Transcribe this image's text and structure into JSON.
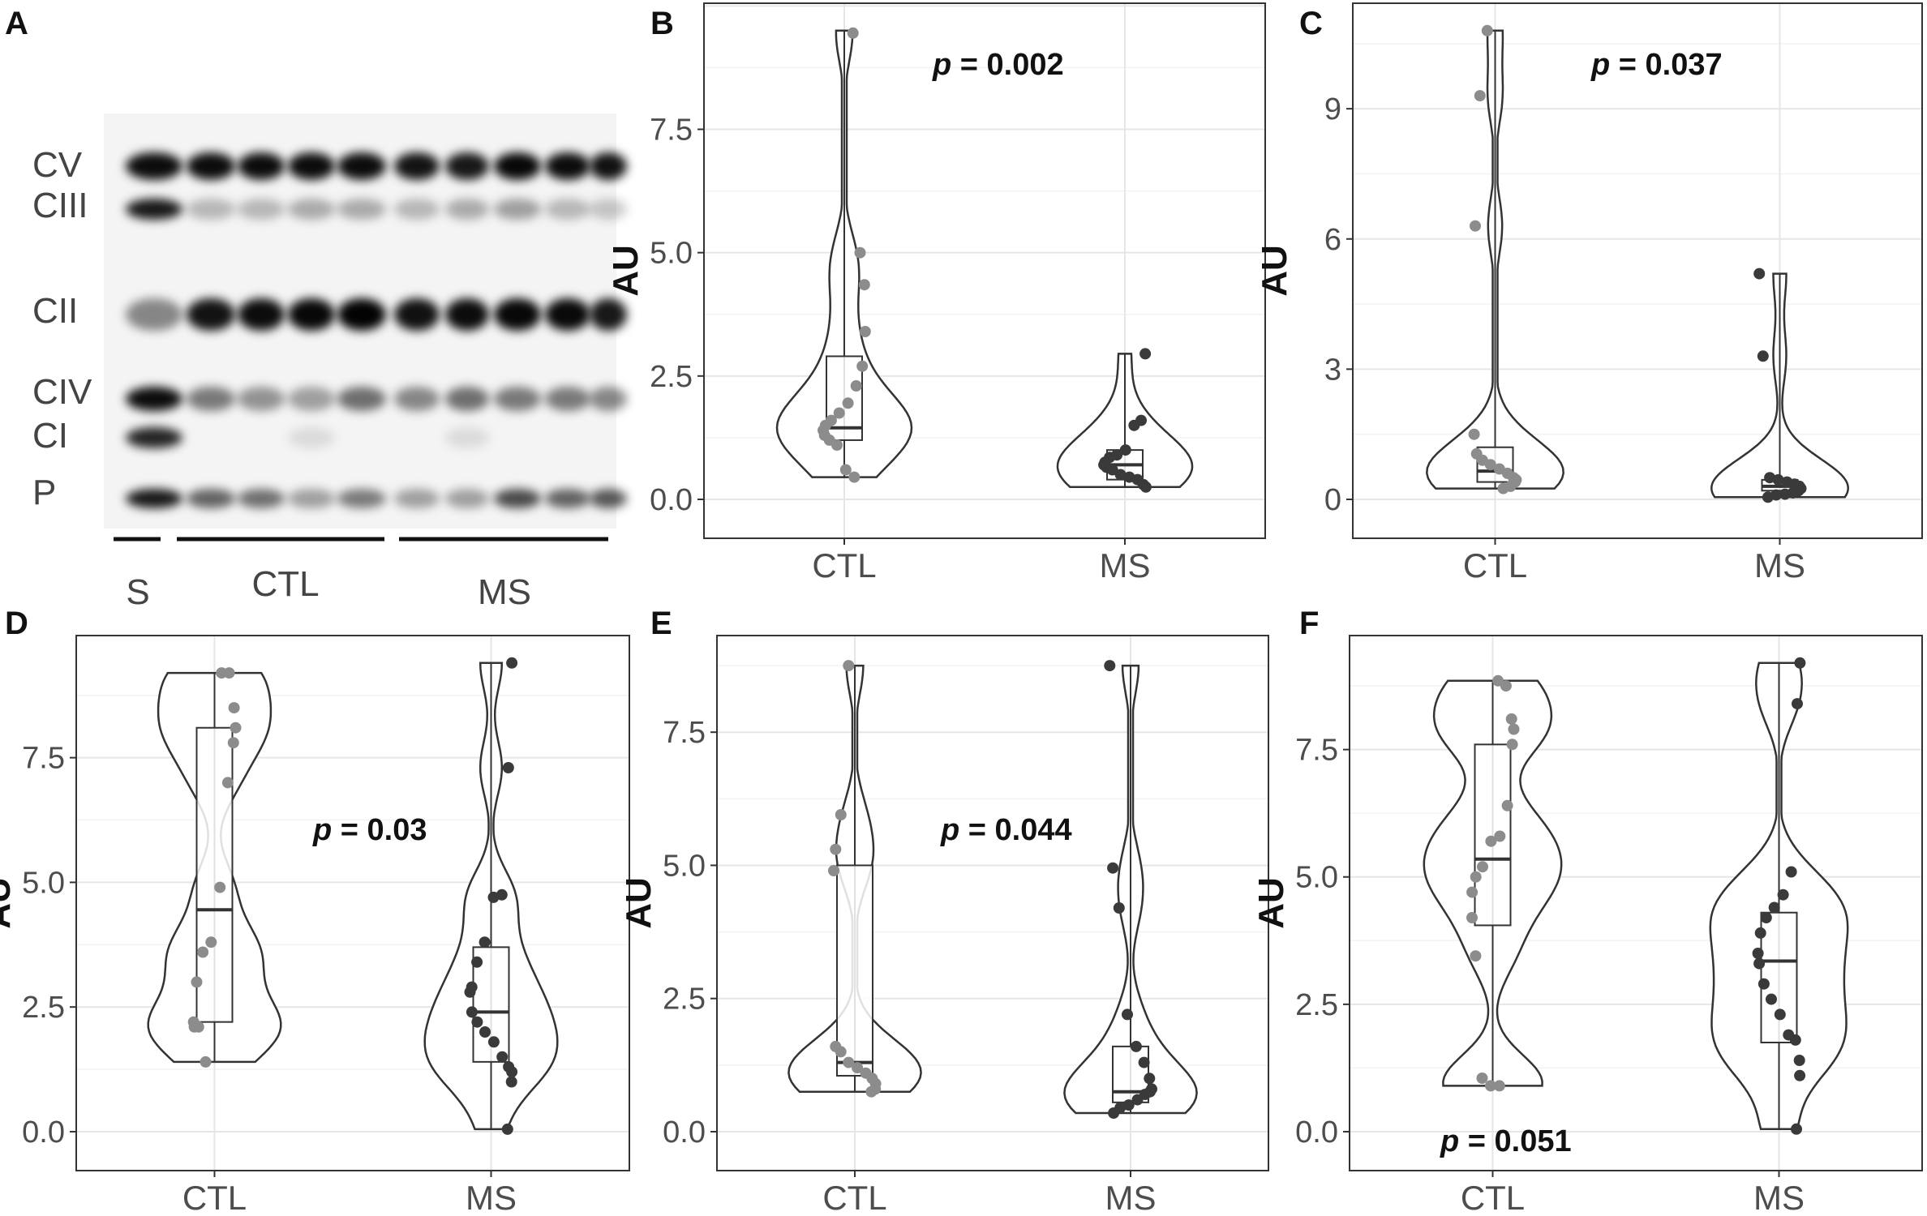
{
  "panel_letters": [
    "A",
    "B",
    "C",
    "D",
    "E",
    "F"
  ],
  "blot": {
    "band_labels": [
      "CV",
      "CIII",
      "CII",
      "CIV",
      "CI",
      "P"
    ],
    "group_labels": [
      "S",
      "CTL",
      "MS"
    ]
  },
  "chart_data": [
    {
      "panel": "B",
      "type": "violin",
      "ylabel": "AU",
      "ylim": [
        0,
        9.5
      ],
      "yticks": [
        0.0,
        2.5,
        5.0,
        7.5
      ],
      "ytick_labels": [
        "0.0",
        "2.5",
        "5.0",
        "7.5"
      ],
      "categories": [
        "CTL",
        "MS"
      ],
      "annotation": {
        "p": "p",
        "text": " = 0.002"
      },
      "grid": true,
      "groups": [
        {
          "name": "CTL",
          "min": 0.45,
          "max": 9.5,
          "q1": 1.2,
          "median": 1.45,
          "q3": 2.9,
          "points": [
            9.45,
            5.0,
            4.35,
            3.4,
            2.7,
            2.3,
            1.95,
            1.75,
            1.6,
            1.5,
            1.4,
            1.3,
            1.2,
            1.1,
            0.6,
            0.45
          ]
        },
        {
          "name": "MS",
          "min": 0.25,
          "max": 2.95,
          "q1": 0.4,
          "median": 0.7,
          "q3": 1.0,
          "points": [
            2.95,
            1.6,
            1.5,
            1.0,
            0.9,
            0.85,
            0.75,
            0.7,
            0.65,
            0.6,
            0.5,
            0.45,
            0.4,
            0.3,
            0.25
          ]
        }
      ]
    },
    {
      "panel": "C",
      "type": "violin",
      "ylabel": "AU",
      "ylim": [
        0,
        10.8
      ],
      "yticks": [
        0,
        3,
        6,
        9
      ],
      "ytick_labels": [
        "0",
        "3",
        "6",
        "9"
      ],
      "categories": [
        "CTL",
        "MS"
      ],
      "annotation": {
        "p": "p",
        "text": " = 0.037"
      },
      "grid": true,
      "groups": [
        {
          "name": "CTL",
          "min": 0.25,
          "max": 10.8,
          "q1": 0.4,
          "median": 0.65,
          "q3": 1.2,
          "points": [
            10.8,
            9.3,
            6.3,
            1.5,
            1.05,
            0.9,
            0.8,
            0.7,
            0.6,
            0.5,
            0.45,
            0.4,
            0.3,
            0.25
          ]
        },
        {
          "name": "MS",
          "min": 0.05,
          "max": 5.2,
          "q1": 0.2,
          "median": 0.3,
          "q3": 0.45,
          "points": [
            5.2,
            3.3,
            0.5,
            0.45,
            0.4,
            0.35,
            0.3,
            0.25,
            0.2,
            0.15,
            0.12,
            0.1,
            0.05
          ]
        }
      ]
    },
    {
      "panel": "D",
      "type": "violin",
      "ylabel": "AU",
      "ylim": [
        0,
        9.4
      ],
      "yticks": [
        0.0,
        2.5,
        5.0,
        7.5
      ],
      "ytick_labels": [
        "0.0",
        "2.5",
        "5.0",
        "7.5"
      ],
      "categories": [
        "CTL",
        "MS"
      ],
      "annotation": {
        "p": "p",
        "text": " = 0.03"
      },
      "grid": true,
      "groups": [
        {
          "name": "CTL",
          "min": 1.4,
          "max": 9.2,
          "q1": 2.2,
          "median": 4.45,
          "q3": 8.1,
          "points": [
            9.2,
            9.2,
            8.5,
            8.1,
            7.8,
            7.0,
            4.9,
            3.8,
            3.6,
            3.0,
            2.2,
            2.1,
            2.1,
            1.4
          ]
        },
        {
          "name": "MS",
          "min": 0.05,
          "max": 9.4,
          "q1": 1.4,
          "median": 2.4,
          "q3": 3.7,
          "points": [
            9.4,
            7.3,
            4.75,
            4.7,
            3.8,
            3.4,
            2.9,
            2.8,
            2.4,
            2.2,
            2.0,
            1.8,
            1.5,
            1.3,
            1.2,
            1.0,
            0.05
          ]
        }
      ]
    },
    {
      "panel": "E",
      "type": "violin",
      "ylabel": "AU",
      "ylim": [
        0,
        8.8
      ],
      "yticks": [
        0.0,
        2.5,
        5.0,
        7.5
      ],
      "ytick_labels": [
        "0.0",
        "2.5",
        "5.0",
        "7.5"
      ],
      "categories": [
        "CTL",
        "MS"
      ],
      "annotation": {
        "p": "p",
        "text": " = 0.044"
      },
      "grid": true,
      "groups": [
        {
          "name": "CTL",
          "min": 0.75,
          "max": 8.75,
          "q1": 1.05,
          "median": 1.3,
          "q3": 5.0,
          "points": [
            8.75,
            5.95,
            5.3,
            4.9,
            1.6,
            1.5,
            1.3,
            1.2,
            1.1,
            1.0,
            0.9,
            0.8,
            0.75
          ]
        },
        {
          "name": "MS",
          "min": 0.35,
          "max": 8.75,
          "q1": 0.55,
          "median": 0.75,
          "q3": 1.6,
          "points": [
            8.75,
            4.95,
            4.2,
            2.2,
            1.6,
            1.3,
            1.0,
            0.8,
            0.75,
            0.7,
            0.6,
            0.5,
            0.45,
            0.35
          ]
        }
      ]
    },
    {
      "panel": "F",
      "type": "violin",
      "ylabel": "AU",
      "ylim": [
        0,
        9.2
      ],
      "yticks": [
        0.0,
        2.5,
        5.0,
        7.5
      ],
      "ytick_labels": [
        "0.0",
        "2.5",
        "5.0",
        "7.5"
      ],
      "categories": [
        "CTL",
        "MS"
      ],
      "annotation": {
        "p": "p",
        "text": " = 0.051"
      },
      "grid": true,
      "groups": [
        {
          "name": "CTL",
          "min": 0.9,
          "max": 8.85,
          "q1": 4.05,
          "median": 5.35,
          "q3": 7.6,
          "points": [
            8.85,
            8.75,
            8.1,
            7.9,
            7.6,
            6.4,
            5.8,
            5.7,
            5.2,
            5.0,
            4.7,
            4.2,
            3.45,
            1.05,
            0.9,
            0.9
          ]
        },
        {
          "name": "MS",
          "min": 0.05,
          "max": 9.2,
          "q1": 1.75,
          "median": 3.35,
          "q3": 4.3,
          "points": [
            9.2,
            8.4,
            5.1,
            4.65,
            4.4,
            4.2,
            3.9,
            3.5,
            3.3,
            2.9,
            2.6,
            2.3,
            1.9,
            1.8,
            1.4,
            1.1,
            0.05
          ]
        }
      ]
    }
  ],
  "colors": {
    "ctl_points": "#8c8c8c",
    "ms_points": "#3a3a3a",
    "violin_stroke": "#333333",
    "grid": "#ebebeb",
    "panel_border": "#333333"
  }
}
